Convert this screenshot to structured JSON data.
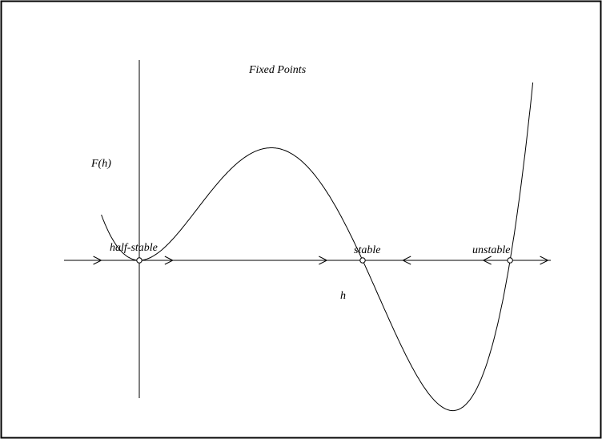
{
  "title": "Fixed Points",
  "y_axis_label": "F(h)",
  "x_axis_label": "h",
  "fixed_points": [
    {
      "label": "half-stable",
      "h": 0,
      "type": "half-stable"
    },
    {
      "label": "stable",
      "h": 1,
      "type": "stable"
    },
    {
      "label": "unstable",
      "h": 1.66,
      "type": "unstable"
    }
  ],
  "flow_arrows": [
    {
      "h": -0.17,
      "direction": "right"
    },
    {
      "h": 0.15,
      "direction": "right"
    },
    {
      "h": 0.84,
      "direction": "right"
    },
    {
      "h": 1.18,
      "direction": "left"
    },
    {
      "h": 1.54,
      "direction": "left"
    },
    {
      "h": 1.83,
      "direction": "right"
    }
  ]
}
